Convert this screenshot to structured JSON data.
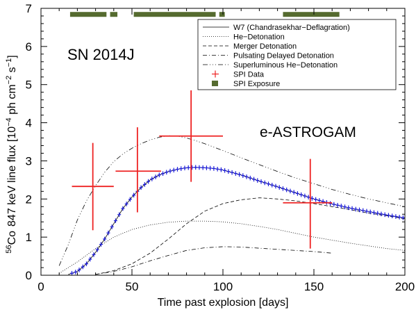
{
  "chart_data": {
    "type": "line",
    "title": "",
    "xlabel": "Time past explosion [days]",
    "ylabel_main": "847 keV line flux [10",
    "ylabel_exp": "−4",
    "ylabel_mid": " ph cm",
    "ylabel_exp2": "−2",
    "ylabel_mid2": " s",
    "ylabel_exp3": "−1",
    "ylabel_end": "]",
    "ylabel_iso_sup": "56",
    "ylabel_iso": "Co",
    "xlim": [
      0,
      200
    ],
    "ylim": [
      0,
      7
    ],
    "xticks": [
      0,
      50,
      100,
      150,
      200
    ],
    "yticks": [
      0,
      1,
      2,
      3,
      4,
      5,
      6,
      7
    ],
    "annotations": [
      {
        "id": "object",
        "text": "SN 2014J",
        "color": "#000000"
      },
      {
        "id": "mission",
        "text": "e-ASTROGAM",
        "color": "#1a1adb"
      }
    ],
    "legend": {
      "placement": "top-right",
      "entries": [
        {
          "label": "W7 (Chandrasekhar−Deflagration)",
          "style": "solid"
        },
        {
          "label": "He−Detonation",
          "style": "dotted"
        },
        {
          "label": "Merger Detonation",
          "style": "dashed"
        },
        {
          "label": "Pulsating Delayed Detonation",
          "style": "dashdot"
        },
        {
          "label": "Superluminous He−Detonation",
          "style": "dashdotdotdot"
        },
        {
          "label": "SPI Data",
          "style": "cross"
        },
        {
          "label": "SPI Exposure",
          "style": "square"
        }
      ]
    },
    "series": [
      {
        "name": "W7 (Chandrasekhar−Deflagration)",
        "style": "solid",
        "color": "#000000",
        "x": [
          15,
          20,
          25,
          30,
          35,
          40,
          45,
          50,
          55,
          60,
          65,
          70,
          75,
          80,
          85,
          90,
          95,
          100,
          110,
          120,
          130,
          140,
          150,
          160,
          170,
          180,
          190,
          200
        ],
        "y": [
          0.02,
          0.1,
          0.3,
          0.6,
          0.95,
          1.35,
          1.75,
          2.05,
          2.3,
          2.5,
          2.63,
          2.72,
          2.78,
          2.82,
          2.83,
          2.82,
          2.8,
          2.76,
          2.63,
          2.47,
          2.32,
          2.16,
          2.0,
          1.87,
          1.76,
          1.67,
          1.58,
          1.5
        ]
      },
      {
        "name": "He−Detonation",
        "style": "dotted",
        "color": "#000000",
        "x": [
          10,
          20,
          30,
          40,
          50,
          60,
          70,
          80,
          90,
          100,
          110,
          120,
          130,
          140,
          150,
          160,
          170,
          180,
          190,
          200
        ],
        "y": [
          0.05,
          0.35,
          0.7,
          1.0,
          1.2,
          1.32,
          1.39,
          1.42,
          1.42,
          1.4,
          1.35,
          1.28,
          1.2,
          1.1,
          1.0,
          0.92,
          0.84,
          0.77,
          0.7,
          0.65
        ]
      },
      {
        "name": "Merger Detonation",
        "style": "dashed",
        "color": "#000000",
        "x": [
          30,
          40,
          50,
          60,
          70,
          80,
          90,
          100,
          110,
          120,
          130,
          140,
          150,
          160,
          170,
          180,
          190,
          200
        ],
        "y": [
          0.02,
          0.12,
          0.3,
          0.58,
          0.95,
          1.35,
          1.68,
          1.88,
          1.98,
          2.03,
          2.0,
          1.95,
          1.88,
          1.8,
          1.72,
          1.63,
          1.56,
          1.48
        ]
      },
      {
        "name": "Pulsating Delayed Detonation",
        "style": "dashdot",
        "color": "#000000",
        "x": [
          30,
          40,
          50,
          60,
          70,
          80,
          90,
          100,
          110,
          120,
          130,
          140,
          150,
          160
        ],
        "y": [
          0.02,
          0.1,
          0.22,
          0.38,
          0.52,
          0.65,
          0.72,
          0.75,
          0.74,
          0.71,
          0.68,
          0.65,
          0.62,
          0.58
        ]
      },
      {
        "name": "Superluminous He−Detonation",
        "style": "dashdotdotdot",
        "color": "#000000",
        "x": [
          10,
          15,
          20,
          25,
          30,
          35,
          40,
          45,
          50,
          55,
          60,
          65,
          70,
          75,
          80,
          85,
          90,
          95,
          100,
          110,
          120,
          130,
          140,
          150,
          160,
          170,
          180,
          190,
          200
        ],
        "y": [
          0.25,
          0.8,
          1.45,
          1.95,
          2.35,
          2.7,
          2.98,
          3.18,
          3.33,
          3.45,
          3.55,
          3.62,
          3.66,
          3.65,
          3.6,
          3.53,
          3.45,
          3.36,
          3.27,
          3.08,
          2.9,
          2.72,
          2.55,
          2.4,
          2.25,
          2.12,
          2.0,
          1.9,
          1.8
        ]
      }
    ],
    "spi_data": {
      "name": "SPI Data",
      "color": "#ee2222",
      "points": [
        {
          "x": 28.5,
          "xerr": [
            17,
            40
          ],
          "y": 2.33,
          "yerr": [
            1.18,
            3.47
          ]
        },
        {
          "x": 53,
          "xerr": [
            41,
            66
          ],
          "y": 2.73,
          "yerr": [
            1.65,
            3.88
          ]
        },
        {
          "x": 82.5,
          "xerr": [
            65,
            100
          ],
          "y": 3.65,
          "yerr": [
            2.45,
            4.85
          ]
        },
        {
          "x": 148,
          "xerr": [
            133,
            160
          ],
          "y": 1.9,
          "yerr": [
            0.7,
            3.05
          ]
        }
      ]
    },
    "spi_exposure": {
      "name": "SPI Exposure",
      "color": "#556b2f",
      "y": 6.85,
      "intervals": [
        [
          16,
          36
        ],
        [
          38,
          42
        ],
        [
          51,
          96
        ],
        [
          98,
          101
        ],
        [
          133,
          164
        ]
      ]
    },
    "astrogam_sim": {
      "name": "e-ASTROGAM",
      "color": "#1a1adb",
      "x_start": 17,
      "x_end": 200,
      "x_step": 2,
      "yerr": 0.06
    }
  }
}
